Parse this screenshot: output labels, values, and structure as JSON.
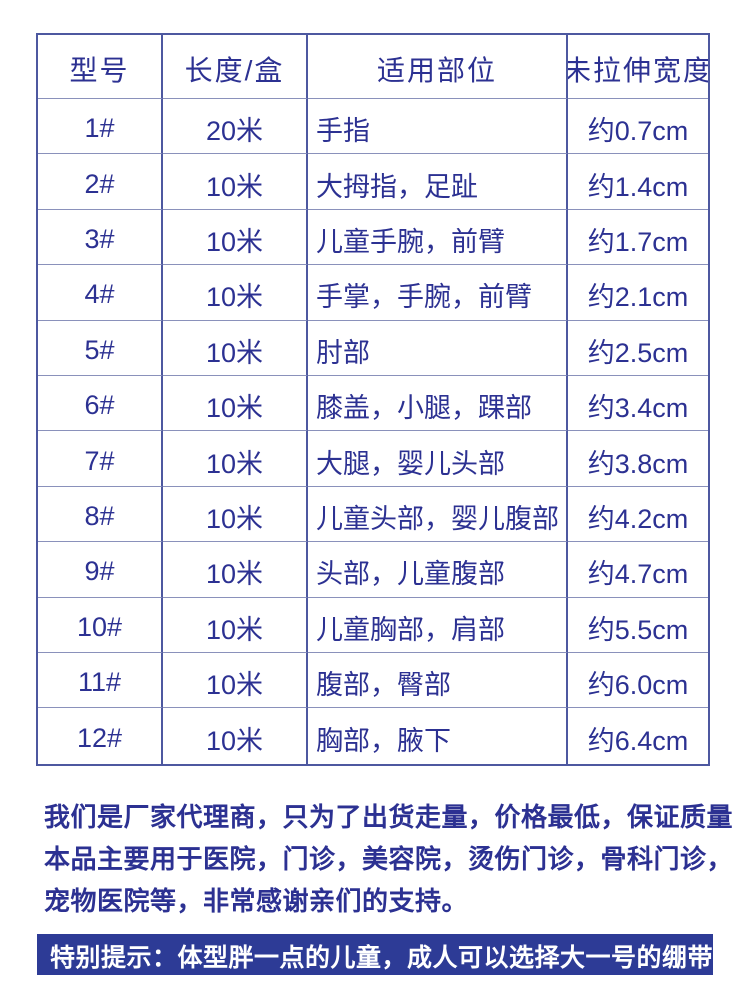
{
  "table": {
    "headers": {
      "model": "型号",
      "length": "长度/盒",
      "parts": "适用部位",
      "width": "未拉伸宽度"
    },
    "rows": [
      {
        "model": "1#",
        "length": "20米",
        "parts": "手指",
        "width": "约0.7cm"
      },
      {
        "model": "2#",
        "length": "10米",
        "parts": "大拇指，足趾",
        "width": "约1.4cm"
      },
      {
        "model": "3#",
        "length": "10米",
        "parts": "儿童手腕，前臂",
        "width": "约1.7cm"
      },
      {
        "model": "4#",
        "length": "10米",
        "parts": "手掌，手腕，前臂",
        "width": "约2.1cm"
      },
      {
        "model": "5#",
        "length": "10米",
        "parts": "肘部",
        "width": "约2.5cm"
      },
      {
        "model": "6#",
        "length": "10米",
        "parts": "膝盖，小腿，踝部",
        "width": "约3.4cm"
      },
      {
        "model": "7#",
        "length": "10米",
        "parts": "大腿，婴儿头部",
        "width": "约3.8cm"
      },
      {
        "model": "8#",
        "length": "10米",
        "parts": "儿童头部，婴儿腹部",
        "width": "约4.2cm"
      },
      {
        "model": "9#",
        "length": "10米",
        "parts": "头部，儿童腹部",
        "width": "约4.7cm"
      },
      {
        "model": "10#",
        "length": "10米",
        "parts": "儿童胸部，肩部",
        "width": "约5.5cm"
      },
      {
        "model": "11#",
        "length": "10米",
        "parts": "腹部，臀部",
        "width": "约6.0cm"
      },
      {
        "model": "12#",
        "length": "10米",
        "parts": "胸部，腋下",
        "width": "约6.4cm"
      }
    ]
  },
  "description": {
    "lines": [
      "我们是厂家代理商，只为了出货走量，价格最低，保证质量",
      "本品主要用于医院，门诊，美容院，烫伤门诊，骨科门诊，",
      "宠物医院等，非常感谢亲们的支持。"
    ]
  },
  "notice": {
    "text": "特别提示：体型胖一点的儿童，成人可以选择大一号的绷带."
  },
  "colors": {
    "text_blue": "#2c3192",
    "border_blue": "#4d58a0",
    "row_line_blue": "#8a91bb",
    "banner_bg": "#2d3b96",
    "banner_text": "#ffffff",
    "page_bg": "#ffffff"
  }
}
